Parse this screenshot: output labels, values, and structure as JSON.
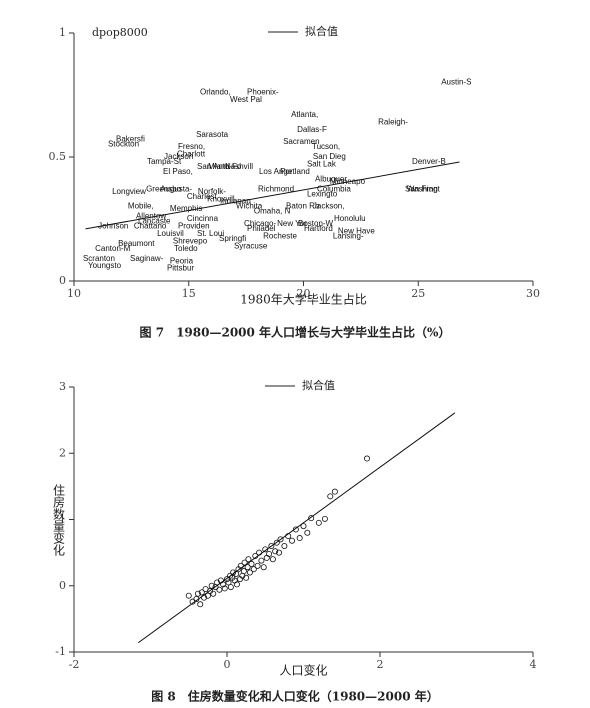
{
  "chart_data": [
    {
      "type": "scatter",
      "ylabel": "dpop8000",
      "xlabel": "1980年大学毕业生占比",
      "caption": "图 7　1980—2000 年人口增长与大学毕业生占比（%）",
      "xlim": [
        10,
        30
      ],
      "ylim": [
        0,
        1
      ],
      "xticks": [
        10,
        15,
        20,
        25,
        30
      ],
      "yticks": [
        0,
        0.5,
        1
      ],
      "labels": [
        "Austin-S",
        "Orlando,",
        "Phoenix-",
        "West Pal",
        "Atlanta,",
        "Raleigh-",
        "Dallas-F",
        "Sarasota",
        "Bakersfi",
        "Stockton",
        "Sacramen",
        "Fresno,",
        "Tucson,",
        "Charlott",
        "Jackson",
        "San Dieg",
        "Tampa-St",
        "Salt Lak",
        "Denver-B",
        "Miami-Fo",
        "San Anto",
        "Nashvill",
        "Los Ange",
        "Portland",
        "El Paso,",
        "Albuquer",
        "Minneapo",
        "Columbia",
        "San Fran",
        "Washingt",
        "Richmond",
        "Greensbo",
        "Norfolk-",
        "Lexingto",
        "Charlest",
        "Knoxvill",
        "Mobile,",
        "Memphis",
        "Indianap",
        "Baton Ro",
        "Jackson,",
        "Omaha, N",
        "Cincinna",
        "Honolulu",
        "Boston-W",
        "Johnson",
        "Chattano",
        "Providen",
        "Chicago-",
        "New Yor",
        "Hartford",
        "New Have",
        "Lansing-",
        "Philadel",
        "St. Loui",
        "Louisvil",
        "Rocheste",
        "Pittsbur",
        "Springfi",
        "Shrevepo",
        "Syracuse",
        "Beaumont",
        "Toledo",
        "Canton-M",
        "Saginaw-",
        "Peoria",
        "Scranton",
        "Youngsto",
        "Allentow",
        "Lancaste",
        "Augusta-",
        "Longview",
        "Wichita"
      ],
      "x": [
        26.0,
        15.49,
        17.54,
        16.8,
        19.46,
        23.25,
        19.72,
        15.32,
        11.83,
        11.48,
        19.11,
        14.53,
        20.37,
        14.49,
        13.92,
        20.41,
        13.18,
        20.15,
        24.73,
        15.84,
        15.36,
        16.58,
        18.06,
        18.98,
        13.88,
        20.5,
        21.15,
        20.59,
        24.42,
        24.5,
        18.02,
        13.14,
        15.4,
        20.15,
        14.92,
        15.8,
        12.35,
        14.18,
        16.36,
        19.24,
        20.41,
        17.84,
        14.92,
        21.33,
        19.76,
        11.05,
        12.61,
        14.53,
        17.41,
        18.85,
        20.02,
        21.5,
        21.28,
        17.54,
        15.36,
        13.62,
        18.24,
        14.05,
        16.32,
        14.31,
        16.97,
        11.92,
        14.36,
        10.92,
        12.44,
        14.18,
        10.39,
        10.61,
        12.7,
        12.79,
        13.75,
        11.66,
        17.06
      ],
      "y": [
        0.8,
        0.76,
        0.76,
        0.73,
        0.67,
        0.64,
        0.61,
        0.59,
        0.57,
        0.55,
        0.56,
        0.54,
        0.54,
        0.51,
        0.5,
        0.5,
        0.48,
        0.47,
        0.48,
        0.46,
        0.46,
        0.46,
        0.44,
        0.44,
        0.44,
        0.41,
        0.4,
        0.37,
        0.37,
        0.37,
        0.37,
        0.37,
        0.36,
        0.35,
        0.34,
        0.33,
        0.3,
        0.29,
        0.32,
        0.3,
        0.3,
        0.28,
        0.25,
        0.25,
        0.23,
        0.22,
        0.22,
        0.22,
        0.23,
        0.23,
        0.21,
        0.2,
        0.18,
        0.21,
        0.19,
        0.19,
        0.18,
        0.05,
        0.17,
        0.16,
        0.14,
        0.15,
        0.13,
        0.13,
        0.09,
        0.08,
        0.09,
        0.06,
        0.26,
        0.24,
        0.37,
        0.36,
        0.3
      ],
      "fit": {
        "name": "拟合值",
        "x": [
          10.5,
          26.8
        ],
        "y": [
          0.21,
          0.48
        ]
      }
    },
    {
      "type": "scatter",
      "ylabel": "住房数量变化",
      "xlabel": "人口变化",
      "caption": "图 8　住房数量变化和人口变化（1980—2000 年）",
      "xlim": [
        -2,
        4
      ],
      "ylim": [
        -1,
        3
      ],
      "xticks": [
        -2,
        0,
        2,
        4
      ],
      "yticks": [
        -1,
        0,
        1,
        2,
        3
      ],
      "x": [
        -0.5,
        -0.45,
        -0.4,
        -0.38,
        -0.35,
        -0.33,
        -0.3,
        -0.28,
        -0.25,
        -0.22,
        -0.2,
        -0.18,
        -0.15,
        -0.13,
        -0.1,
        -0.08,
        -0.05,
        -0.03,
        0,
        0.02,
        0.04,
        0.05,
        0.07,
        0.08,
        0.1,
        0.12,
        0.13,
        0.15,
        0.17,
        0.18,
        0.2,
        0.22,
        0.23,
        0.25,
        0.27,
        0.28,
        0.3,
        0.32,
        0.35,
        0.37,
        0.4,
        0.42,
        0.45,
        0.48,
        0.5,
        0.52,
        0.55,
        0.58,
        0.6,
        0.63,
        0.65,
        0.68,
        0.7,
        0.75,
        0.8,
        0.85,
        0.9,
        0.95,
        1.0,
        1.05,
        1.1,
        1.2,
        1.28,
        1.35,
        1.41,
        1.83
      ],
      "y": [
        -0.15,
        -0.24,
        -0.2,
        -0.12,
        -0.28,
        -0.1,
        -0.18,
        -0.05,
        -0.15,
        -0.08,
        0.0,
        -0.12,
        -0.02,
        0.05,
        -0.06,
        0.08,
        0.02,
        -0.04,
        0.1,
        0.05,
        0.15,
        -0.02,
        0.12,
        0.2,
        0.08,
        0.18,
        0.02,
        0.25,
        0.1,
        0.3,
        0.15,
        0.22,
        0.35,
        0.12,
        0.28,
        0.4,
        0.2,
        0.33,
        0.25,
        0.45,
        0.3,
        0.5,
        0.38,
        0.28,
        0.55,
        0.42,
        0.48,
        0.6,
        0.4,
        0.52,
        0.65,
        0.5,
        0.7,
        0.6,
        0.75,
        0.68,
        0.85,
        0.72,
        0.9,
        0.8,
        1.02,
        0.95,
        1.01,
        1.35,
        1.42,
        1.92
      ],
      "fit": {
        "name": "拟合值",
        "x": [
          -1.16,
          2.98
        ],
        "y": [
          -0.86,
          2.61
        ]
      }
    }
  ]
}
